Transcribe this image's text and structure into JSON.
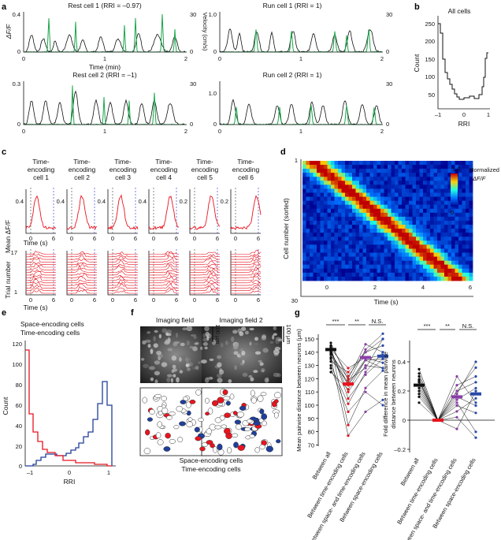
{
  "labels": {
    "a": "a",
    "b": "b",
    "c": "c",
    "d": "d",
    "e": "e",
    "f": "f",
    "g": "g"
  },
  "panel_a": {
    "titles": [
      "Rest cell 1 (RRI = –0.97)",
      "Run cell 1 (RRI = 1)",
      "Rest cell 2 (RRI = –1)",
      "Run cell 2 (RRI = 1)"
    ],
    "ylabel_left": "ΔF/F",
    "ylabel_right": "Velocity (cm/s)",
    "xlabel": "Time (min)",
    "xticks": [
      "0",
      "1",
      "2"
    ],
    "yticks_tl": [
      "0.4",
      "0"
    ],
    "yticks_tr": [
      "1.0",
      "0"
    ],
    "yticks_bl": [
      "0.3",
      "0"
    ],
    "yticks_br": [
      "1.0",
      "0"
    ],
    "vel_ticks": [
      "30",
      "0"
    ],
    "colors": {
      "trace": "#111111",
      "velocity": "#1aa64a"
    }
  },
  "panel_b": {
    "title": "All cells",
    "ylabel": "Count",
    "xlabel": "RRI",
    "xticks": [
      "–1",
      "0",
      "1"
    ],
    "yticks": [
      "250",
      "200",
      "150",
      "100",
      "50"
    ]
  },
  "panel_c": {
    "cells": [
      "Time-\nencoding\ncell 1",
      "Time-\nencoding\ncell 2",
      "Time-\nencoding\ncell 3",
      "Time-\nencoding\ncell 4",
      "Time-\nencoding\ncell 5",
      "Time-\nencoding\ncell 6"
    ],
    "ylabel_top": "Mean ΔF/F",
    "ylabel_bottom": "Trial number",
    "xlabel": "Time (s)",
    "xticks": [
      "0",
      "6"
    ],
    "ytick_values": [
      "0.4",
      "0.4",
      "0.4",
      "0.4",
      "0.2",
      "0.2"
    ],
    "trial_ticks": [
      "17",
      "1"
    ],
    "color": "#e8141f"
  },
  "panel_d": {
    "ylabel": "Cell number (sorted)",
    "xlabel": "Time (s)",
    "xticks": [
      "0",
      "2",
      "4",
      "6"
    ],
    "yticks": [
      "1",
      "30"
    ],
    "colorbar_ticks": [
      "1.0",
      "0"
    ],
    "colorbar_label": "Normalized ΔF/F"
  },
  "panel_e": {
    "legend": [
      "Space-encoding cells",
      "Time-encoding cells"
    ],
    "ylabel": "Count",
    "xlabel": "RRI",
    "yticks": [
      "120",
      "100",
      "80",
      "60",
      "40",
      "20",
      "0"
    ],
    "xticks": [
      "–1",
      "0",
      "1"
    ],
    "colors": {
      "space": "#1f3f99",
      "time": "#e8141f"
    }
  },
  "panel_f": {
    "fields": [
      "Imaging field",
      "Imaging field 2"
    ],
    "scalebar": "100 μm",
    "legend": [
      "Space-encoding cells",
      "Time-encoding cells"
    ]
  },
  "panel_g": {
    "ylabel_left": "Mean pairwise distance between neurons (μm)",
    "ylabel_right": "Fold difference in mean pairwise distance between neurons",
    "yticks_left": [
      "150",
      "140",
      "130",
      "120",
      "110",
      "100",
      "90",
      "80",
      "70"
    ],
    "yticks_right": [
      "0.4",
      "0.2",
      "0",
      "–0.2"
    ],
    "sig": [
      "***",
      "**",
      "N.S."
    ],
    "xcats": [
      "Between all",
      "Between time-encoding cells",
      "Between space- and time-encoding cells",
      "Between space-encoding cells"
    ],
    "xcats_right": [
      "Between all",
      "Between time-encoding cells",
      "Between space- and time-encoding cells",
      "Between space-encoding cells"
    ],
    "colors": {
      "all": "#111111",
      "time": "#e8141f",
      "mixed": "#8a3ea8",
      "space": "#2a4aa8"
    }
  }
}
